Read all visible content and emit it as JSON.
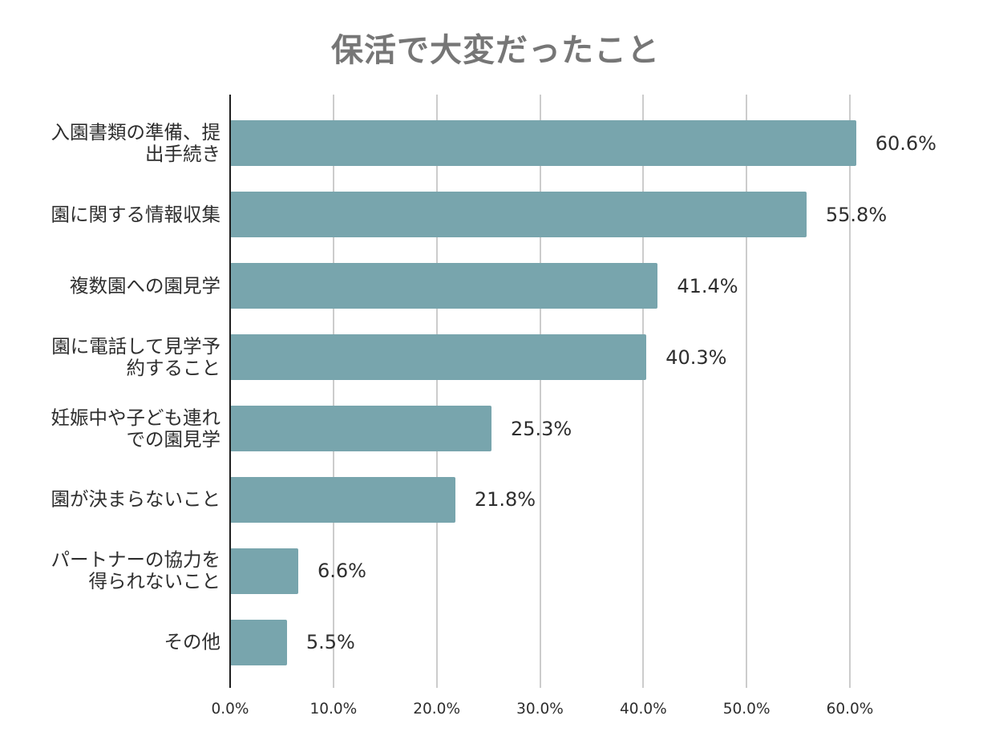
{
  "chart_data": {
    "type": "bar",
    "orientation": "horizontal",
    "title": "保活で大変だったこと",
    "categories": [
      "入園書類の準備、提出手続き",
      "園に関する情報収集",
      "複数園への園見学",
      "園に電話して見学予約すること",
      "妊娠中や子ども連れでの園見学",
      "園が決まらないこと",
      "パートナーの協力を得られないこと",
      "その他"
    ],
    "values": [
      60.6,
      55.8,
      41.4,
      40.3,
      25.3,
      21.8,
      6.6,
      5.5
    ],
    "value_labels": [
      "60.6%",
      "55.8%",
      "41.4%",
      "40.3%",
      "25.3%",
      "21.8%",
      "6.6%",
      "5.5%"
    ],
    "xlim": [
      0,
      60
    ],
    "xticks": [
      0,
      10,
      20,
      30,
      40,
      50,
      60
    ],
    "xtick_labels": [
      "0.0%",
      "10.0%",
      "20.0%",
      "30.0%",
      "40.0%",
      "50.0%",
      "60.0%"
    ],
    "grid": true,
    "legend": "none",
    "colors": {
      "bar": "#78a5ad",
      "title": "#767676",
      "text": "#2e2e2e",
      "grid": "#cccccc",
      "axis": "#1e1e1e"
    }
  }
}
